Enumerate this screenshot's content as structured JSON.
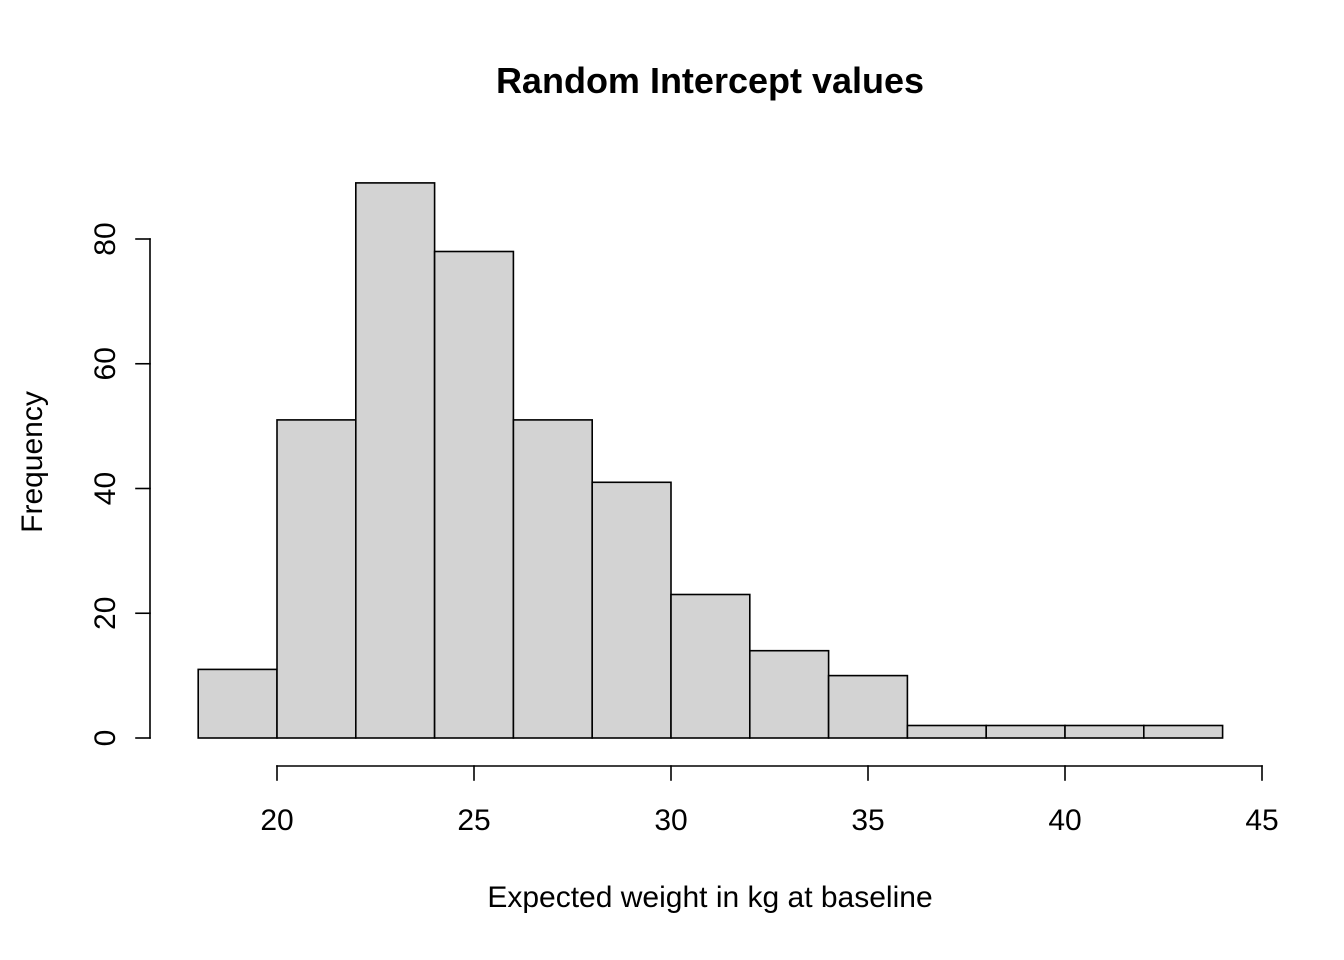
{
  "title": "Random Intercept values",
  "xlabel": "Expected weight in kg at baseline",
  "ylabel": "Frequency",
  "chart_data": {
    "type": "bar",
    "subtype": "histogram",
    "title": "Random Intercept values",
    "xlabel": "Expected weight in kg at baseline",
    "ylabel": "Frequency",
    "bin_edges": [
      18,
      20,
      22,
      24,
      26,
      28,
      30,
      32,
      34,
      36,
      38,
      40,
      42,
      44
    ],
    "counts": [
      11,
      51,
      89,
      78,
      51,
      41,
      23,
      14,
      10,
      2,
      2,
      2,
      2
    ],
    "x_ticks": [
      20,
      25,
      30,
      35,
      40,
      45
    ],
    "y_ticks": [
      0,
      20,
      40,
      60,
      80
    ],
    "xlim": [
      18,
      45
    ],
    "ylim": [
      0,
      89
    ],
    "grid": false,
    "legend": false,
    "bar_fill": "#d3d3d3",
    "bar_stroke": "#000000",
    "axis_color": "#000000",
    "background": "#ffffff"
  }
}
